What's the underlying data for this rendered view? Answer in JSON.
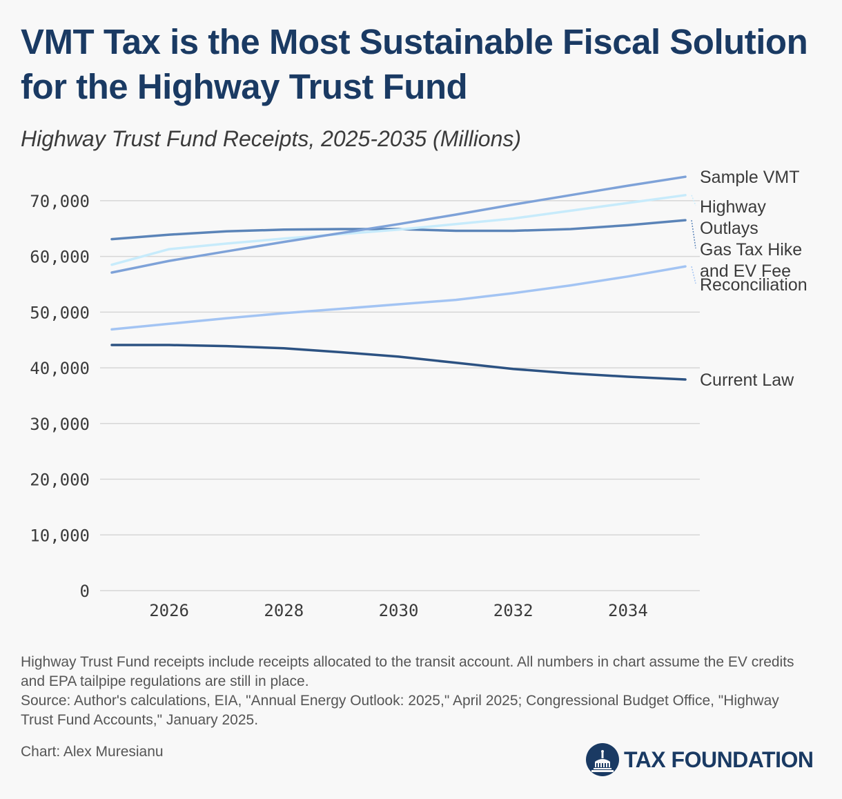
{
  "header": {
    "title": "VMT Tax is the Most Sustainable Fiscal Solution for the Highway Trust Fund",
    "subtitle": "Highway Trust Fund Receipts, 2025-2035 (Millions)"
  },
  "footer": {
    "note": "Highway Trust Fund receipts include receipts allocated to the transit account. All numbers in chart assume the EV credits and EPA tailpipe regulations are still in place.",
    "source": "Source: Author's calculations, EIA, \"Annual Energy Outlook: 2025,\" April 2025; Congressional Budget Office, \"Highway Trust Fund Accounts,\" January 2025.",
    "credit": "Chart: Alex Muresianu",
    "logo_text": "TAX FOUNDATION"
  },
  "colors": {
    "brand": "#1a3a63",
    "grid": "#d6d6d6",
    "tick_text": "#3b3b3b"
  },
  "chart_data": {
    "type": "line",
    "x": [
      2025,
      2026,
      2027,
      2028,
      2029,
      2030,
      2031,
      2032,
      2033,
      2034,
      2035
    ],
    "xticks": [
      "2026",
      "2028",
      "2030",
      "2032",
      "2034"
    ],
    "yticks": [
      "0",
      "10,000",
      "20,000",
      "30,000",
      "40,000",
      "50,000",
      "60,000",
      "70,000"
    ],
    "ylim": [
      0,
      75000
    ],
    "grid": true,
    "legend": "direct labels at line ends",
    "series": [
      {
        "name": "Current Law",
        "color": "#2c5282",
        "values": [
          44100,
          44100,
          43900,
          43500,
          42800,
          42000,
          40900,
          39800,
          39000,
          38400,
          37900
        ]
      },
      {
        "name": "Reconciliation",
        "color": "#a3c4f3",
        "values": [
          46900,
          47900,
          48900,
          49800,
          50600,
          51400,
          52200,
          53400,
          54800,
          56400,
          58200
        ]
      },
      {
        "name": "Gas Tax Hike and EV Fee",
        "color": "#5b84b8",
        "values": [
          63100,
          63900,
          64500,
          64800,
          64900,
          64900,
          64600,
          64600,
          64900,
          65600,
          66500
        ]
      },
      {
        "name": "Highway Outlays",
        "color": "#c7ebfb",
        "values": [
          58500,
          61300,
          62300,
          63200,
          64000,
          64800,
          65800,
          66800,
          68200,
          69600,
          71000
        ]
      },
      {
        "name": "Sample VMT",
        "color": "#7ea2d8",
        "values": [
          57100,
          59200,
          60900,
          62600,
          64200,
          65800,
          67500,
          69300,
          71000,
          72700,
          74300
        ]
      }
    ]
  }
}
